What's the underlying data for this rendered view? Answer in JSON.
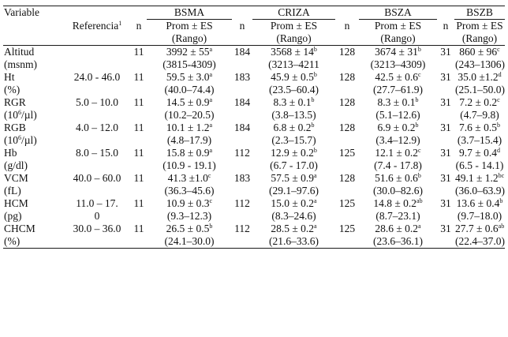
{
  "headers": {
    "variable": "Variable",
    "referencia": "Referencia",
    "referencia_sup": "1",
    "groups": [
      "BSMA",
      "CRIZA",
      "BSZA",
      "BSZB"
    ],
    "n": "n",
    "prom_es": "Prom ± ES",
    "rango": "(Rango)"
  },
  "rows": [
    {
      "var1": "Altitud",
      "var2": "(msnm)",
      "ref1": "",
      "ref2": "",
      "cells": [
        {
          "n": "11",
          "mean": "3992 ± 55",
          "sup": "a",
          "range": "(3815-4309)"
        },
        {
          "n": "184",
          "mean": "3568 ± 14",
          "sup": "b",
          "range": "(3213–4211"
        },
        {
          "n": "128",
          "mean": "3674 ± 31",
          "sup": "b",
          "range": "(3213–4309)"
        },
        {
          "n": "31",
          "mean": "860 ± 96",
          "sup": "c",
          "range": "(243–1306)"
        }
      ]
    },
    {
      "var1": "Ht",
      "var2": "(%)",
      "ref1": "24.0 - 46.0",
      "ref2": "",
      "cells": [
        {
          "n": "11",
          "mean": "59.5 ± 3.0",
          "sup": "a",
          "range": "(40.0–74.4)"
        },
        {
          "n": "183",
          "mean": "45.9 ± 0.5",
          "sup": "b",
          "range": "(23.5–60.4)"
        },
        {
          "n": "128",
          "mean": "42.5 ± 0.6",
          "sup": "c",
          "range": "(27.7–61.9)"
        },
        {
          "n": "31",
          "mean": "35.0 ±1.2",
          "sup": "d",
          "range": "(25.1–50.0)"
        }
      ]
    },
    {
      "var1": "RGR",
      "var2": "(10",
      "var2_sup": "6",
      "var2_tail": "/µl)",
      "ref1": "5.0 – 10.0",
      "ref2": "",
      "cells": [
        {
          "n": "11",
          "mean": "14.5 ± 0.9",
          "sup": "a",
          "range": "(10.2–20.5)"
        },
        {
          "n": "184",
          "mean": "8.3 ± 0.1",
          "sup": "b",
          "range": "(3.8–13.5)"
        },
        {
          "n": "128",
          "mean": "8.3 ± 0.1",
          "sup": "b",
          "range": "(5.1–12.6)"
        },
        {
          "n": "31",
          "mean": "7.2 ± 0.2",
          "sup": "c",
          "range": "(4.7–9.8)"
        }
      ]
    },
    {
      "var1": "RGB",
      "var2": "(10",
      "var2_sup": "6",
      "var2_tail": "/µl)",
      "ref1": "4.0 – 12.0",
      "ref2": "",
      "cells": [
        {
          "n": "11",
          "mean": "10.1 ± 1.2",
          "sup": "a",
          "range": "(4.8–17.9)"
        },
        {
          "n": "184",
          "mean": "6.8 ± 0.2",
          "sup": "b",
          "range": "(2.3–15.7)"
        },
        {
          "n": "128",
          "mean": "6.9 ± 0.2",
          "sup": "b",
          "range": "(3.4–12.9)"
        },
        {
          "n": "31",
          "mean": "7.6 ± 0.5",
          "sup": "b",
          "range": "(3.7–15.4)"
        }
      ]
    },
    {
      "var1": "Hb",
      "var2": "(g/dl)",
      "ref1": "8.0 – 15.0",
      "ref2": "",
      "cells": [
        {
          "n": "11",
          "mean": "15.8 ± 0.9",
          "sup": "a",
          "range": "(10.9 - 19.1)"
        },
        {
          "n": "112",
          "mean": "12.9 ± 0.2",
          "sup": "b",
          "range": "(6.7 - 17.0)"
        },
        {
          "n": "125",
          "mean": "12.1 ± 0.2",
          "sup": "c",
          "range": "(7.4 - 17.8)"
        },
        {
          "n": "31",
          "mean": "9.7 ± 0.4",
          "sup": "d",
          "range": "(6.5 - 14.1)"
        }
      ]
    },
    {
      "var1": "VCM",
      "var2": "(fL)",
      "ref1": "40.0 – 60.0",
      "ref2": "",
      "cells": [
        {
          "n": "11",
          "mean": "41.3 ±1.0",
          "sup": "c",
          "range": "(36.3–45.6)"
        },
        {
          "n": "183",
          "mean": "57.5 ± 0.9",
          "sup": "a",
          "range": "(29.1–97.6)"
        },
        {
          "n": "128",
          "mean": "51.6 ± 0.6",
          "sup": "b",
          "range": "(30.0–82.6)"
        },
        {
          "n": "31",
          "mean": "49.1 ± 1.2",
          "sup": "bc",
          "range": "(36.0–63.9)"
        }
      ]
    },
    {
      "var1": "HCM",
      "var2": "(pg)",
      "ref1": "11.0 – 17.",
      "ref2": "0",
      "cells": [
        {
          "n": "11",
          "mean": "10.9 ± 0.3",
          "sup": "c",
          "range": "(9.3–12.3)"
        },
        {
          "n": "112",
          "mean": "15.0 ± 0.2",
          "sup": "a",
          "range": "(8.3–24.6)"
        },
        {
          "n": "125",
          "mean": "14.8 ± 0.2",
          "sup": "ab",
          "range": "(8.7–23.1)"
        },
        {
          "n": "31",
          "mean": "13.6 ± 0.4",
          "sup": "b",
          "range": "(9.7–18.0)"
        }
      ]
    },
    {
      "var1": "CHCM",
      "var2": "(%)",
      "ref1": "30.0 – 36.0",
      "ref2": "",
      "cells": [
        {
          "n": "11",
          "mean": "26.5 ± 0.5",
          "sup": "b",
          "range": "(24.1–30.0)"
        },
        {
          "n": "112",
          "mean": "28.5 ± 0.2",
          "sup": "a",
          "range": "(21.6–33.6)"
        },
        {
          "n": "125",
          "mean": "28.6 ± 0.2",
          "sup": "a",
          "range": "(23.6–36.1)"
        },
        {
          "n": "31",
          "mean": "27.7 ± 0.6",
          "sup": "ab",
          "range": "(22.4–37.0)"
        }
      ]
    }
  ]
}
